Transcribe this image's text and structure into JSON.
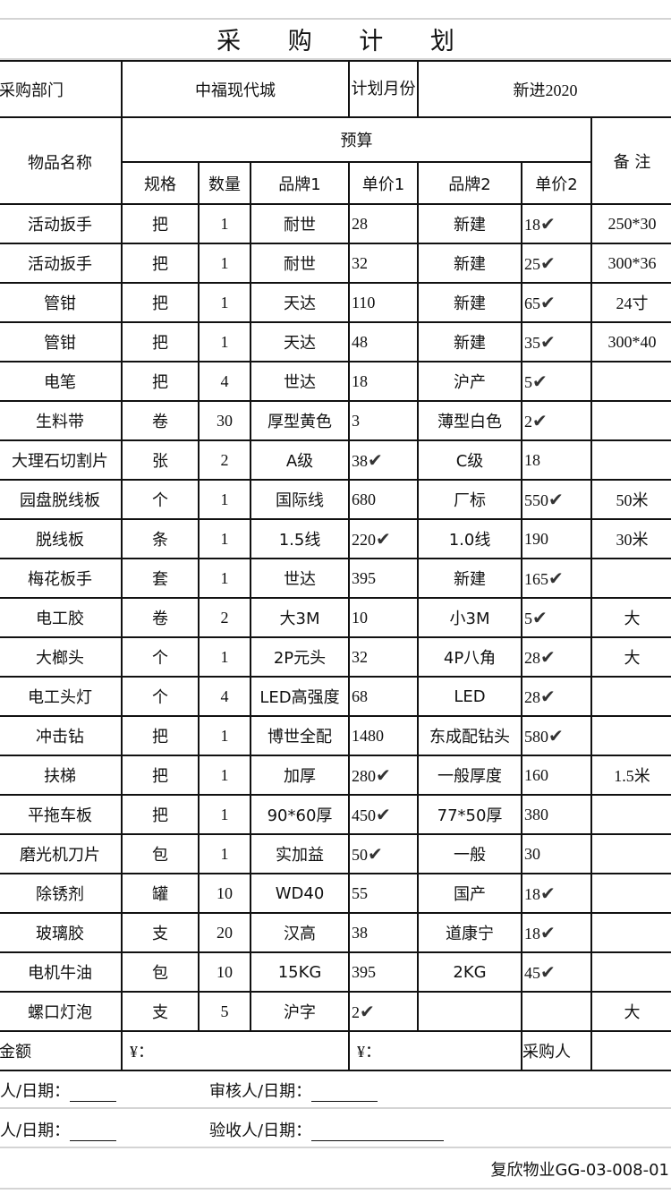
{
  "title": "采 购 计 划",
  "header": {
    "dept_label": "采购部门",
    "dept_value": "中福现代城",
    "month_label": "计划月份",
    "month_value": "新进2020"
  },
  "columns": {
    "name": "物品名称",
    "budget": "预算",
    "spec": "规格",
    "qty": "数量",
    "brand1": "品牌1",
    "price1": "单价1",
    "brand2": "品牌2",
    "price2": "单价2",
    "note": "备 注"
  },
  "check_mark": "✔",
  "rows": [
    {
      "name": "活动扳手",
      "spec": "把",
      "qty": "1",
      "brand1": "耐世",
      "price1": "28",
      "check1": false,
      "brand2": "新建",
      "price2": "18",
      "check2": true,
      "note": "250*30"
    },
    {
      "name": "活动扳手",
      "spec": "把",
      "qty": "1",
      "brand1": "耐世",
      "price1": "32",
      "check1": false,
      "brand2": "新建",
      "price2": "25",
      "check2": true,
      "note": "300*36"
    },
    {
      "name": "管钳",
      "spec": "把",
      "qty": "1",
      "brand1": "天达",
      "price1": "110",
      "check1": false,
      "brand2": "新建",
      "price2": "65",
      "check2": true,
      "note": "24寸"
    },
    {
      "name": "管钳",
      "spec": "把",
      "qty": "1",
      "brand1": "天达",
      "price1": "48",
      "check1": false,
      "brand2": "新建",
      "price2": "35",
      "check2": true,
      "note": "300*40"
    },
    {
      "name": "电笔",
      "spec": "把",
      "qty": "4",
      "brand1": "世达",
      "price1": "18",
      "check1": false,
      "brand2": "沪产",
      "price2": "5",
      "check2": true,
      "note": ""
    },
    {
      "name": "生料带",
      "spec": "卷",
      "qty": "30",
      "brand1": "厚型黄色",
      "price1": "3",
      "check1": false,
      "brand2": "薄型白色",
      "price2": "2",
      "check2": true,
      "note": ""
    },
    {
      "name": "大理石切割片",
      "spec": "张",
      "qty": "2",
      "brand1": "A级",
      "price1": "38",
      "check1": true,
      "brand2": "C级",
      "price2": "18",
      "check2": false,
      "note": ""
    },
    {
      "name": "园盘脱线板",
      "spec": "个",
      "qty": "1",
      "brand1": "国际线",
      "price1": "680",
      "check1": false,
      "brand2": "厂标",
      "price2": "550",
      "check2": true,
      "note": "50米"
    },
    {
      "name": "脱线板",
      "spec": "条",
      "qty": "1",
      "brand1": "1.5线",
      "price1": "220",
      "check1": true,
      "brand2": "1.0线",
      "price2": "190",
      "check2": false,
      "note": "30米"
    },
    {
      "name": "梅花板手",
      "spec": "套",
      "qty": "1",
      "brand1": "世达",
      "price1": "395",
      "check1": false,
      "brand2": "新建",
      "price2": "165",
      "check2": true,
      "note": ""
    },
    {
      "name": "电工胶",
      "spec": "卷",
      "qty": "2",
      "brand1": "大3M",
      "price1": "10",
      "check1": false,
      "brand2": "小3M",
      "price2": "5",
      "check2": true,
      "note": "大"
    },
    {
      "name": "大榔头",
      "spec": "个",
      "qty": "1",
      "brand1": "2P元头",
      "price1": "32",
      "check1": false,
      "brand2": "4P八角",
      "price2": "28",
      "check2": true,
      "note": "大"
    },
    {
      "name": "电工头灯",
      "spec": "个",
      "qty": "4",
      "brand1": "LED高强度",
      "price1": "68",
      "check1": false,
      "brand2": "LED",
      "price2": "28",
      "check2": true,
      "note": ""
    },
    {
      "name": "冲击钻",
      "spec": "把",
      "qty": "1",
      "brand1": "博世全配",
      "price1": "1480",
      "check1": false,
      "brand2": "东成配钻头",
      "price2": "580",
      "check2": true,
      "note": ""
    },
    {
      "name": "扶梯",
      "spec": "把",
      "qty": "1",
      "brand1": "加厚",
      "price1": "280",
      "check1": true,
      "brand2": "一般厚度",
      "price2": "160",
      "check2": false,
      "note": "1.5米"
    },
    {
      "name": "平拖车板",
      "spec": "把",
      "qty": "1",
      "brand1": "90*60厚",
      "price1": "450",
      "check1": true,
      "brand2": "77*50厚",
      "price2": "380",
      "check2": false,
      "note": ""
    },
    {
      "name": "磨光机刀片",
      "spec": "包",
      "qty": "1",
      "brand1": "实加益",
      "price1": "50",
      "check1": true,
      "brand2": "一般",
      "price2": "30",
      "check2": false,
      "note": ""
    },
    {
      "name": "除锈剂",
      "spec": "罐",
      "qty": "10",
      "brand1": "WD40",
      "price1": "55",
      "check1": false,
      "brand2": "国产",
      "price2": "18",
      "check2": true,
      "note": ""
    },
    {
      "name": "玻璃胶",
      "spec": "支",
      "qty": "20",
      "brand1": "汉高",
      "price1": "38",
      "check1": false,
      "brand2": "道康宁",
      "price2": "18",
      "check2": true,
      "note": ""
    },
    {
      "name": "电机牛油",
      "spec": "包",
      "qty": "10",
      "brand1": "15KG",
      "price1": "395",
      "check1": false,
      "brand2": "2KG",
      "price2": "45",
      "check2": true,
      "note": ""
    },
    {
      "name": "螺口灯泡",
      "spec": "支",
      "qty": "5",
      "brand1": "沪字",
      "price1": "2",
      "check1": true,
      "brand2": "",
      "price2": "",
      "check2": false,
      "note": "大"
    }
  ],
  "total": {
    "label": "金额",
    "amount1": "¥：",
    "amount2": "¥：",
    "buyer_label": "采购人"
  },
  "signatures": {
    "row1_left": "人/日期：",
    "row1_right": "审核人/日期：",
    "row2_left": "人/日期：",
    "row2_right": "验收人/日期："
  },
  "footer": "复欣物业GG-03-008-01"
}
